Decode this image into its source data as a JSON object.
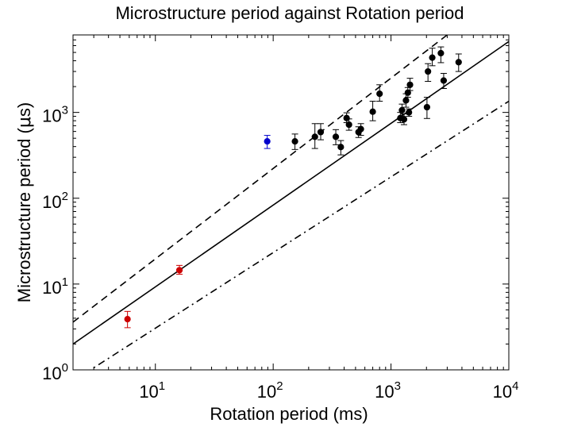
{
  "chart_data": {
    "type": "scatter",
    "title": "Microstructure period against Rotation period",
    "xlabel": "Rotation period (ms)",
    "ylabel_prefix": "Microstructure period (",
    "ylabel_mu": "μ",
    "ylabel_suffix": "s)",
    "xscale": "log",
    "yscale": "log",
    "xlim": [
      2,
      10000
    ],
    "ylim": [
      1,
      8000
    ],
    "xticks": [
      {
        "value": 10,
        "base": "10",
        "exp": "1"
      },
      {
        "value": 100,
        "base": "10",
        "exp": "2"
      },
      {
        "value": 1000,
        "base": "10",
        "exp": "3"
      },
      {
        "value": 10000,
        "base": "10",
        "exp": "4"
      }
    ],
    "yticks": [
      {
        "value": 1,
        "base": "10",
        "exp": "0"
      },
      {
        "value": 10,
        "base": "10",
        "exp": "1"
      },
      {
        "value": 100,
        "base": "10",
        "exp": "2"
      },
      {
        "value": 1000,
        "base": "10",
        "exp": "3"
      }
    ],
    "grid": false,
    "lines": [
      {
        "style": "dashed",
        "color": "#000000",
        "x": [
          2,
          3000
        ],
        "y": [
          3.6,
          8000
        ]
      },
      {
        "style": "solid",
        "color": "#000000",
        "x": [
          2,
          10000
        ],
        "y": [
          2.0,
          6700
        ]
      },
      {
        "style": "dashdot",
        "color": "#000000",
        "x": [
          2.5,
          10000
        ],
        "y": [
          0.9,
          1350
        ]
      }
    ],
    "series": [
      {
        "color": "#cc0000",
        "points": [
          {
            "x": 5.8,
            "y": 3.9,
            "ylo": 3.1,
            "yhi": 4.8
          },
          {
            "x": 16,
            "y": 14.5,
            "ylo": 13.0,
            "yhi": 16.5
          }
        ]
      },
      {
        "color": "#0000cc",
        "points": [
          {
            "x": 89,
            "y": 460,
            "ylo": 380,
            "yhi": 540
          }
        ]
      },
      {
        "color": "#000000",
        "points": [
          {
            "x": 153,
            "y": 460,
            "ylo": 370,
            "yhi": 560
          },
          {
            "x": 226,
            "y": 520,
            "ylo": 380,
            "yhi": 740
          },
          {
            "x": 253,
            "y": 590,
            "ylo": 480,
            "yhi": 740
          },
          {
            "x": 340,
            "y": 520,
            "ylo": 420,
            "yhi": 630
          },
          {
            "x": 375,
            "y": 395,
            "ylo": 320,
            "yhi": 470
          },
          {
            "x": 420,
            "y": 860,
            "ylo": 760,
            "yhi": 990
          },
          {
            "x": 440,
            "y": 720,
            "ylo": 620,
            "yhi": 840
          },
          {
            "x": 530,
            "y": 590,
            "ylo": 510,
            "yhi": 680
          },
          {
            "x": 555,
            "y": 640,
            "ylo": 540,
            "yhi": 740
          },
          {
            "x": 700,
            "y": 1020,
            "ylo": 800,
            "yhi": 1350
          },
          {
            "x": 800,
            "y": 1650,
            "ylo": 1350,
            "yhi": 2100
          },
          {
            "x": 1200,
            "y": 860,
            "ylo": 760,
            "yhi": 1000
          },
          {
            "x": 1240,
            "y": 1060,
            "ylo": 900,
            "yhi": 1250
          },
          {
            "x": 1290,
            "y": 830,
            "ylo": 720,
            "yhi": 960
          },
          {
            "x": 1340,
            "y": 1380,
            "ylo": 1150,
            "yhi": 1650
          },
          {
            "x": 1390,
            "y": 1700,
            "ylo": 1500,
            "yhi": 1950
          },
          {
            "x": 1420,
            "y": 1000,
            "ylo": 900,
            "yhi": 1100
          },
          {
            "x": 1450,
            "y": 2100,
            "ylo": 1800,
            "yhi": 2500
          },
          {
            "x": 2020,
            "y": 1150,
            "ylo": 850,
            "yhi": 1500
          },
          {
            "x": 2060,
            "y": 3000,
            "ylo": 2300,
            "yhi": 3700
          },
          {
            "x": 2240,
            "y": 4350,
            "ylo": 3500,
            "yhi": 5600
          },
          {
            "x": 2650,
            "y": 4900,
            "ylo": 3800,
            "yhi": 5800
          },
          {
            "x": 2800,
            "y": 2350,
            "ylo": 1900,
            "yhi": 2850
          },
          {
            "x": 3750,
            "y": 3850,
            "ylo": 3000,
            "yhi": 4800
          }
        ]
      }
    ]
  }
}
